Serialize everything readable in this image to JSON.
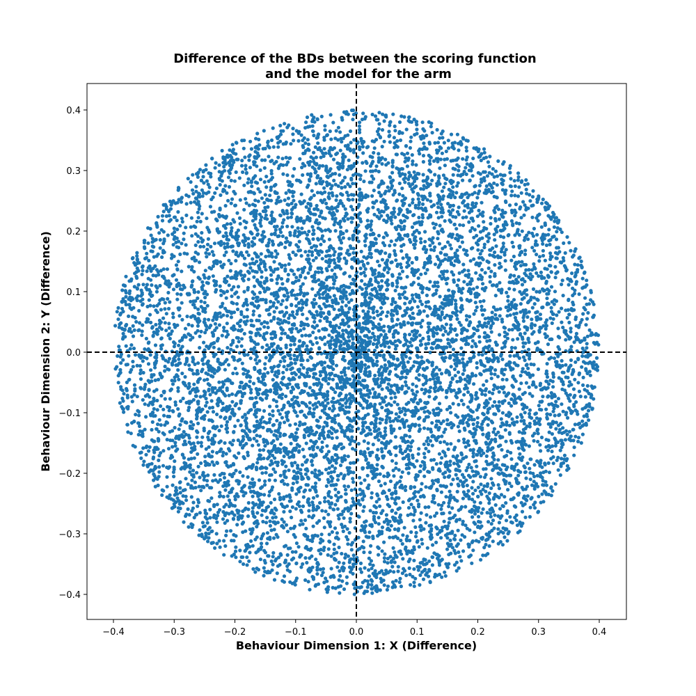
{
  "chart_data": {
    "type": "scatter",
    "title": "Difference of the BDs between the scoring function\nand the model for the arm",
    "title_lines": [
      "Difference of the BDs between the scoring function",
      "and the model for the arm"
    ],
    "xlabel": "Behaviour Dimension 1: X (Difference)",
    "ylabel": "Behaviour Dimension 2: Y (Difference)",
    "xlim": [
      -0.44,
      0.44
    ],
    "ylim": [
      -0.44,
      0.44
    ],
    "x_ticks": [
      -0.4,
      -0.3,
      -0.2,
      -0.1,
      0.0,
      0.1,
      0.2,
      0.3,
      0.4
    ],
    "y_ticks": [
      -0.4,
      -0.3,
      -0.2,
      -0.1,
      0.0,
      0.1,
      0.2,
      0.3,
      0.4
    ],
    "x_tick_labels": [
      "−0.4",
      "−0.3",
      "−0.2",
      "−0.1",
      "0.0",
      "0.1",
      "0.2",
      "0.3",
      "0.4"
    ],
    "y_tick_labels": [
      "−0.4",
      "−0.3",
      "−0.2",
      "−0.1",
      "0.0",
      "0.1",
      "0.2",
      "0.3",
      "0.4"
    ],
    "grid": false,
    "reference_lines": [
      {
        "orientation": "vertical",
        "x": 0.0,
        "style": "dashed",
        "color": "#000000"
      },
      {
        "orientation": "horizontal",
        "y": 0.0,
        "style": "dashed",
        "color": "#000000"
      }
    ],
    "series": [
      {
        "color": "#1f77b4",
        "distribution": "disk",
        "center": [
          0.0,
          0.0
        ],
        "radius": 0.4,
        "approx_point_count": 9000,
        "density": "highest near the center, thinning toward the edge"
      }
    ]
  }
}
